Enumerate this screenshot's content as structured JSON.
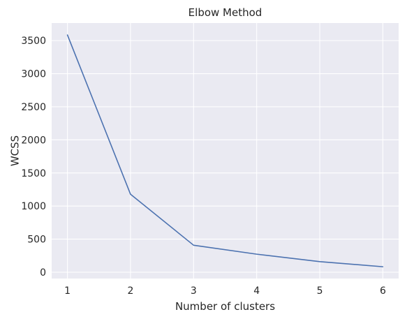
{
  "chart_data": {
    "type": "line",
    "title": "Elbow Method",
    "xlabel": "Number of clusters",
    "ylabel": "WCSS",
    "x": [
      1,
      2,
      3,
      4,
      5,
      6
    ],
    "series": [
      {
        "values": [
          3585,
          1178,
          408,
          273,
          160,
          83
        ],
        "color": "#4c72b0"
      }
    ],
    "xticks": [
      "1",
      "2",
      "3",
      "4",
      "5",
      "6"
    ],
    "yticks": [
      "0",
      "500",
      "1000",
      "1500",
      "2000",
      "2500",
      "3000",
      "3500"
    ],
    "xlim": [
      0.75,
      6.25
    ],
    "ylim": [
      -95,
      3765
    ],
    "grid": true,
    "background_color": "#eaeaf2",
    "grid_color": "#ffffff"
  }
}
